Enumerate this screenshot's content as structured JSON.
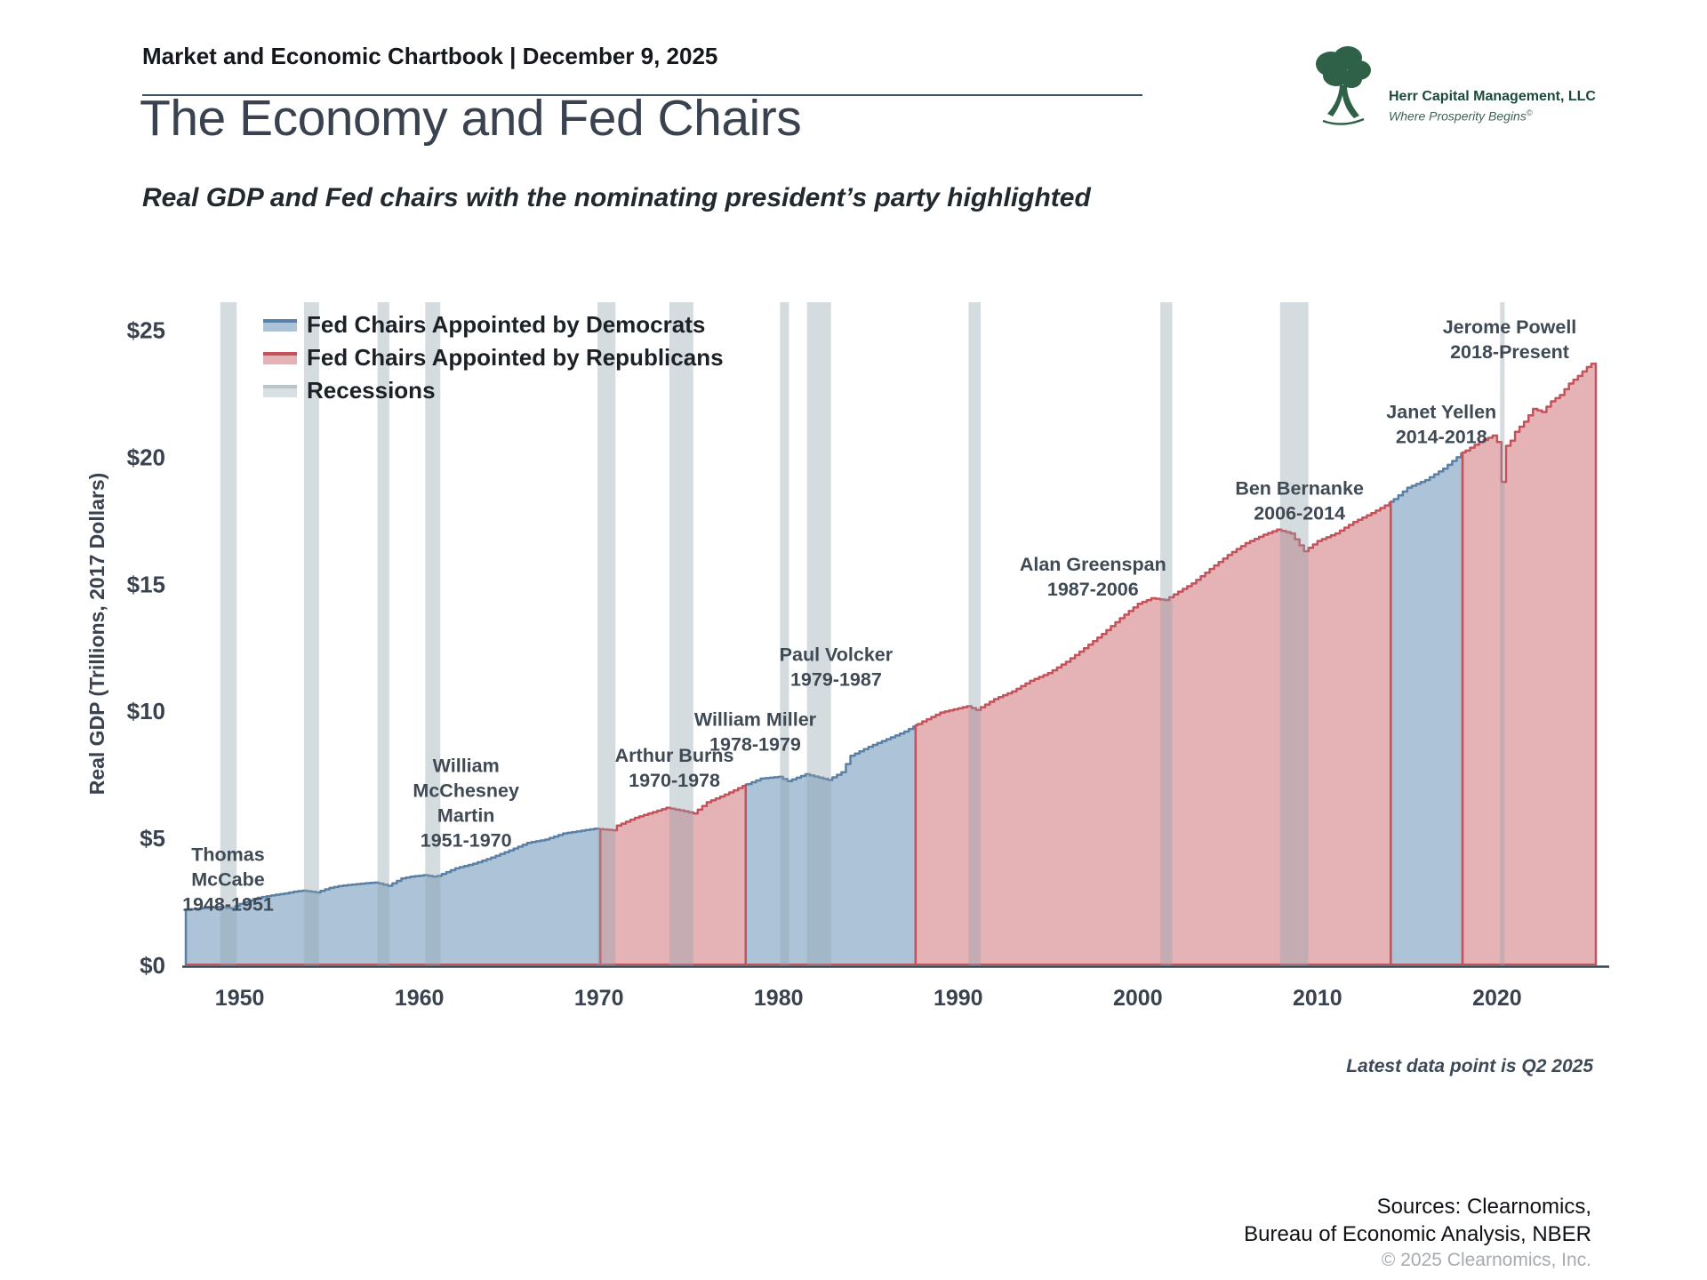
{
  "page": {
    "header_title": "Market and Economic Chartbook | December 9, 2025",
    "logo": {
      "company": "Herr Capital Management, LLC",
      "tagline": "Where Prosperity Begins",
      "tagline_mark": "©"
    },
    "title": "The Economy and Fed Chairs",
    "subtitle": "Real GDP and Fed chairs with the nominating president’s party highlighted",
    "footnote": "Latest data point is Q2 2025",
    "sources_line1": "Sources: Clearnomics,",
    "sources_line2": "Bureau of Economic Analysis, NBER",
    "copyright": "© 2025 Clearnomics, Inc."
  },
  "chart_data": {
    "type": "area",
    "title": "The Economy and Fed Chairs",
    "ylabel": "Real GDP (Trillions, 2017 Dollars)",
    "xlabel": "",
    "x_range": [
      1947,
      2025.5
    ],
    "y_range": [
      0,
      26.1
    ],
    "x_ticks": [
      1950,
      1960,
      1970,
      1980,
      1990,
      2000,
      2010,
      2020
    ],
    "y_ticks": [
      0,
      5,
      10,
      15,
      20,
      25
    ],
    "y_tick_labels": [
      "$0",
      "$5",
      "$10",
      "$15",
      "$20",
      "$25"
    ],
    "grid": false,
    "legend_position": "upper-left-inside",
    "legend": [
      {
        "label": "Fed Chairs Appointed by Democrats",
        "line": "#5b80a5",
        "fill": "#adc3d7"
      },
      {
        "label": "Fed Chairs Appointed by Republicans",
        "line": "#c4525a",
        "fill": "#e5b2b6"
      },
      {
        "label": "Recessions",
        "line": "#b9c5cb",
        "fill": "#d9e0e4"
      }
    ],
    "colors": {
      "dem_line": "#5b80a5",
      "dem_fill": "#adc3d7",
      "rep_line": "#c4525a",
      "rep_fill": "#e5b2b6",
      "recession": "#90a2ad",
      "recession_opacity": 0.38,
      "axis": "#39424e",
      "tick_text": "#39424e",
      "annotation_text": "#3f4a55"
    },
    "segments": [
      {
        "party": "D",
        "from": 1947.0,
        "to": 1970.08
      },
      {
        "party": "R",
        "from": 1970.08,
        "to": 1978.17
      },
      {
        "party": "D",
        "from": 1978.17,
        "to": 1987.63
      },
      {
        "party": "R",
        "from": 1987.63,
        "to": 2014.08
      },
      {
        "party": "D",
        "from": 2014.08,
        "to": 2018.08
      },
      {
        "party": "R",
        "from": 2018.08,
        "to": 2025.5
      }
    ],
    "chairs": [
      {
        "name": "Thomas McCabe",
        "term": "1948-1951",
        "party": "Democrat",
        "label_lines": [
          "Thomas",
          "McCabe",
          "1948-1951"
        ],
        "label_x": 1949.35,
        "label_y": 3.4
      },
      {
        "name": "William McChesney Martin",
        "term": "1951-1970",
        "party": "Democrat",
        "label_lines": [
          "William",
          "McChesney",
          "Martin",
          "1951-1970"
        ],
        "label_x": 1962.6,
        "label_y": 6.4
      },
      {
        "name": "Arthur Burns",
        "term": "1970-1978",
        "party": "Republican",
        "label_lines": [
          "Arthur Burns",
          "1970-1978"
        ],
        "label_x": 1974.2,
        "label_y": 7.78
      },
      {
        "name": "William Miller",
        "term": "1978-1979",
        "party": "Democrat",
        "label_lines": [
          "William Miller",
          "1978-1979"
        ],
        "label_x": 1978.7,
        "label_y": 9.2
      },
      {
        "name": "Paul Volcker",
        "term": "1979-1987",
        "party": "Democrat",
        "label_lines": [
          "Paul Volcker",
          "1979-1987"
        ],
        "label_x": 1983.2,
        "label_y": 11.75
      },
      {
        "name": "Alan Greenspan",
        "term": "1987-2006",
        "party": "Republican",
        "label_lines": [
          "Alan Greenspan",
          "1987-2006"
        ],
        "label_x": 1997.5,
        "label_y": 15.3
      },
      {
        "name": "Ben Bernanke",
        "term": "2006-2014",
        "party": "Republican",
        "label_lines": [
          "Ben Bernanke",
          "2006-2014"
        ],
        "label_x": 2009.0,
        "label_y": 18.3
      },
      {
        "name": "Janet Yellen",
        "term": "2014-2018",
        "party": "Democrat",
        "label_lines": [
          "Janet Yellen",
          "2014-2018"
        ],
        "label_x": 2016.9,
        "label_y": 21.3
      },
      {
        "name": "Jerome Powell",
        "term": "2018-Present",
        "party": "Republican",
        "label_lines": [
          "Jerome Powell",
          "2018-Present"
        ],
        "label_x": 2020.7,
        "label_y": 24.65
      }
    ],
    "recessions": [
      [
        1948.92,
        1949.83
      ],
      [
        1953.58,
        1954.42
      ],
      [
        1957.67,
        1958.33
      ],
      [
        1960.33,
        1961.17
      ],
      [
        1969.92,
        1970.92
      ],
      [
        1973.92,
        1975.25
      ],
      [
        1980.08,
        1980.58
      ],
      [
        1981.58,
        1982.92
      ],
      [
        1990.58,
        1991.25
      ],
      [
        2001.25,
        2001.92
      ],
      [
        2007.92,
        2009.5
      ],
      [
        2020.17,
        2020.42
      ]
    ],
    "gdp": [
      [
        1947,
        2.2
      ],
      [
        1947.5,
        2.22
      ],
      [
        1948,
        2.26
      ],
      [
        1948.75,
        2.3
      ],
      [
        1949.5,
        2.25
      ],
      [
        1950,
        2.42
      ],
      [
        1950.5,
        2.55
      ],
      [
        1951,
        2.66
      ],
      [
        1951.5,
        2.72
      ],
      [
        1952,
        2.78
      ],
      [
        1952.5,
        2.83
      ],
      [
        1953,
        2.9
      ],
      [
        1953.5,
        2.94
      ],
      [
        1954.25,
        2.87
      ],
      [
        1955,
        3.05
      ],
      [
        1955.5,
        3.12
      ],
      [
        1956,
        3.16
      ],
      [
        1957,
        3.23
      ],
      [
        1957.5,
        3.26
      ],
      [
        1958.25,
        3.13
      ],
      [
        1959,
        3.42
      ],
      [
        1959.5,
        3.49
      ],
      [
        1960.25,
        3.55
      ],
      [
        1960.75,
        3.49
      ],
      [
        1961,
        3.52
      ],
      [
        1962,
        3.82
      ],
      [
        1963,
        4.0
      ],
      [
        1964,
        4.24
      ],
      [
        1965,
        4.52
      ],
      [
        1966,
        4.82
      ],
      [
        1967,
        4.95
      ],
      [
        1968,
        5.19
      ],
      [
        1969.75,
        5.38
      ],
      [
        1970.75,
        5.32
      ],
      [
        1971,
        5.5
      ],
      [
        1972,
        5.81
      ],
      [
        1973.75,
        6.2
      ],
      [
        1974.5,
        6.1
      ],
      [
        1975.25,
        5.98
      ],
      [
        1976,
        6.42
      ],
      [
        1977,
        6.72
      ],
      [
        1978,
        7.06
      ],
      [
        1979,
        7.35
      ],
      [
        1980,
        7.42
      ],
      [
        1980.5,
        7.25
      ],
      [
        1981.5,
        7.52
      ],
      [
        1982.75,
        7.3
      ],
      [
        1983,
        7.4
      ],
      [
        1983.5,
        7.6
      ],
      [
        1984,
        8.25
      ],
      [
        1985,
        8.6
      ],
      [
        1986,
        8.9
      ],
      [
        1987,
        9.2
      ],
      [
        1988,
        9.6
      ],
      [
        1989,
        9.95
      ],
      [
        1990.5,
        10.2
      ],
      [
        1991,
        10.05
      ],
      [
        1992,
        10.48
      ],
      [
        1993,
        10.78
      ],
      [
        1994,
        11.2
      ],
      [
        1995,
        11.5
      ],
      [
        1996,
        11.95
      ],
      [
        1997,
        12.48
      ],
      [
        1998,
        13.04
      ],
      [
        1999,
        13.66
      ],
      [
        2000,
        14.23
      ],
      [
        2000.75,
        14.45
      ],
      [
        2001.5,
        14.38
      ],
      [
        2002,
        14.6
      ],
      [
        2003,
        15.03
      ],
      [
        2004,
        15.6
      ],
      [
        2005,
        16.15
      ],
      [
        2006,
        16.62
      ],
      [
        2007,
        16.95
      ],
      [
        2007.75,
        17.15
      ],
      [
        2008.5,
        17.0
      ],
      [
        2009.25,
        16.3
      ],
      [
        2010,
        16.7
      ],
      [
        2011,
        17.0
      ],
      [
        2012,
        17.45
      ],
      [
        2013,
        17.8
      ],
      [
        2014,
        18.2
      ],
      [
        2015,
        18.8
      ],
      [
        2016,
        19.1
      ],
      [
        2017,
        19.55
      ],
      [
        2018,
        20.15
      ],
      [
        2019,
        20.6
      ],
      [
        2019.75,
        20.85
      ],
      [
        2020,
        20.6
      ],
      [
        2020.25,
        19.03
      ],
      [
        2020.5,
        20.45
      ],
      [
        2020.75,
        20.65
      ],
      [
        2021,
        21.0
      ],
      [
        2021.5,
        21.4
      ],
      [
        2022,
        21.9
      ],
      [
        2022.5,
        21.78
      ],
      [
        2023,
        22.2
      ],
      [
        2023.5,
        22.45
      ],
      [
        2024,
        22.9
      ],
      [
        2024.5,
        23.2
      ],
      [
        2025,
        23.55
      ],
      [
        2025.25,
        23.68
      ],
      [
        2025.5,
        23.68
      ]
    ]
  }
}
